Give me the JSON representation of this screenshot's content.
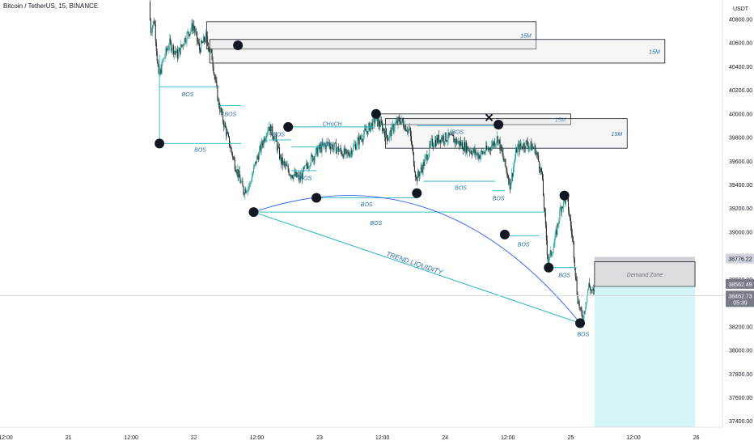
{
  "header": {
    "symbol": "Bitcoin / TetherUS, 15, BINANCE",
    "currency": "USDT"
  },
  "chart_data": {
    "type": "candlestick",
    "title": "Bitcoin / TetherUS, 15, BINANCE",
    "ylim": [
      37350,
      40950
    ],
    "y_ticks": [
      37400,
      37600,
      37800,
      38000,
      38200,
      38400,
      38600,
      38800,
      39000,
      39200,
      39400,
      39600,
      39800,
      40000,
      40200,
      40400,
      40600,
      40800
    ],
    "x_ticks": [
      {
        "t": 0,
        "label": "12:00"
      },
      {
        "t": 1,
        "label": "21"
      },
      {
        "t": 2,
        "label": "12:00"
      },
      {
        "t": 3,
        "label": "22"
      },
      {
        "t": 4,
        "label": "12:00"
      },
      {
        "t": 5,
        "label": "23"
      },
      {
        "t": 6,
        "label": "12:00"
      },
      {
        "t": 7,
        "label": "24"
      },
      {
        "t": 8,
        "label": "12:00"
      },
      {
        "t": 9,
        "label": "25"
      },
      {
        "t": 10,
        "label": "12:00"
      },
      {
        "t": 11,
        "label": "26"
      }
    ],
    "price_markers": [
      {
        "value": "38776.22",
        "color": "#d1d4dc",
        "text_color": "#131722"
      },
      {
        "value": "38562.49",
        "color": "#787b86",
        "text_color": "#ffffff"
      },
      {
        "value": "38462.73",
        "sub": "05:39",
        "color": "#787b86",
        "text_color": "#ffffff"
      }
    ],
    "current_price": 38462.73,
    "price_path": [
      [
        2.3,
        40950
      ],
      [
        2.32,
        40700
      ],
      [
        2.38,
        40800
      ],
      [
        2.45,
        40300
      ],
      [
        2.52,
        40450
      ],
      [
        2.62,
        40600
      ],
      [
        2.75,
        40500
      ],
      [
        2.88,
        40650
      ],
      [
        3.0,
        40750
      ],
      [
        3.1,
        40550
      ],
      [
        3.2,
        40650
      ],
      [
        3.3,
        40480
      ],
      [
        3.4,
        40100
      ],
      [
        3.5,
        39900
      ],
      [
        3.65,
        39600
      ],
      [
        3.8,
        39350
      ],
      [
        3.9,
        39400
      ],
      [
        4.0,
        39600
      ],
      [
        4.1,
        39750
      ],
      [
        4.2,
        39900
      ],
      [
        4.3,
        39800
      ],
      [
        4.4,
        39600
      ],
      [
        4.55,
        39500
      ],
      [
        4.7,
        39450
      ],
      [
        4.85,
        39600
      ],
      [
        5.0,
        39700
      ],
      [
        5.15,
        39750
      ],
      [
        5.3,
        39700
      ],
      [
        5.45,
        39650
      ],
      [
        5.6,
        39750
      ],
      [
        5.75,
        39850
      ],
      [
        5.9,
        39950
      ],
      [
        6.0,
        39900
      ],
      [
        6.1,
        39800
      ],
      [
        6.2,
        39900
      ],
      [
        6.3,
        39950
      ],
      [
        6.45,
        39850
      ],
      [
        6.55,
        39450
      ],
      [
        6.65,
        39550
      ],
      [
        6.8,
        39750
      ],
      [
        6.95,
        39800
      ],
      [
        7.1,
        39800
      ],
      [
        7.25,
        39750
      ],
      [
        7.4,
        39700
      ],
      [
        7.55,
        39650
      ],
      [
        7.7,
        39700
      ],
      [
        7.85,
        39800
      ],
      [
        7.95,
        39600
      ],
      [
        8.05,
        39400
      ],
      [
        8.15,
        39700
      ],
      [
        8.3,
        39750
      ],
      [
        8.45,
        39700
      ],
      [
        8.55,
        39500
      ],
      [
        8.65,
        38750
      ],
      [
        8.75,
        38900
      ],
      [
        8.85,
        39200
      ],
      [
        8.95,
        39300
      ],
      [
        9.05,
        38900
      ],
      [
        9.12,
        38450
      ],
      [
        9.2,
        38250
      ],
      [
        9.3,
        38550
      ],
      [
        9.35,
        38500
      ],
      [
        9.38,
        38480
      ]
    ],
    "zones": [
      {
        "label": "15M",
        "t0": 3.2,
        "t1": 8.45,
        "p0": 40550,
        "p1": 40780
      },
      {
        "label": "15M",
        "t0": 3.25,
        "t1": 10.5,
        "p0": 40430,
        "p1": 40630
      },
      {
        "label": "15M",
        "t0": 5.95,
        "t1": 9.0,
        "p0": 39910,
        "p1": 40000
      },
      {
        "label": "15M",
        "t0": 6.05,
        "t1": 9.9,
        "p0": 39710,
        "p1": 39960
      },
      {
        "label": "Demand Zone",
        "t0": 9.38,
        "t1": 10.98,
        "p0": 38540,
        "p1": 38750
      }
    ],
    "demand_zone_label": "Demand Zone",
    "bos_labels": [
      "BOS",
      "BOS",
      "BOS",
      "BOS",
      "BOS",
      "BOS",
      "BOS",
      "BOS",
      "BOS",
      "BOS",
      "BOS",
      "BOS",
      "BOS",
      "BOS"
    ],
    "choch_label": "CHoCH",
    "trend_label": "TREND LIQUIDITY",
    "swing_points": [
      {
        "t": 3.7,
        "p": 40580
      },
      {
        "t": 2.45,
        "p": 39750
      },
      {
        "t": 3.95,
        "p": 39170
      },
      {
        "t": 4.5,
        "p": 39890
      },
      {
        "t": 4.95,
        "p": 39290
      },
      {
        "t": 5.9,
        "p": 40000
      },
      {
        "t": 6.55,
        "p": 39330
      },
      {
        "t": 7.85,
        "p": 39910
      },
      {
        "t": 7.95,
        "p": 38980
      },
      {
        "t": 8.65,
        "p": 38700
      },
      {
        "t": 8.9,
        "p": 39310
      },
      {
        "t": 9.15,
        "p": 38230
      }
    ]
  }
}
